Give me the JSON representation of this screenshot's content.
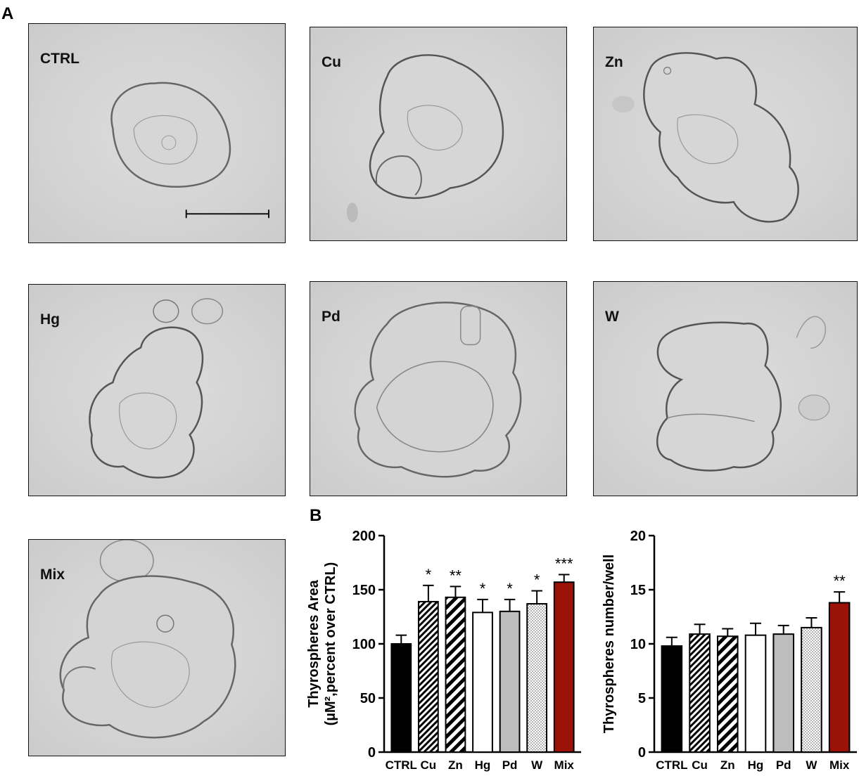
{
  "panels": {
    "a": "A",
    "b": "B"
  },
  "micrographs": [
    {
      "id": "ctrl",
      "label": "CTRL",
      "scale_bar": true
    },
    {
      "id": "cu",
      "label": "Cu"
    },
    {
      "id": "zn",
      "label": "Zn"
    },
    {
      "id": "hg",
      "label": "Hg"
    },
    {
      "id": "pd",
      "label": "Pd"
    },
    {
      "id": "w",
      "label": "W"
    },
    {
      "id": "mix",
      "label": "Mix"
    }
  ],
  "colors": {
    "black_bar": "#000000",
    "white_bar": "#ffffff",
    "grey_bar": "#bdbdbd",
    "mix_bar": "#9b1308"
  },
  "chart_data": [
    {
      "type": "bar",
      "ylabel_line1": "Thyrospheres Area",
      "ylabel_line2": "(µM²,percent over CTRL)",
      "ylim": [
        0,
        200
      ],
      "yticks": [
        "0",
        "50",
        "100",
        "150",
        "200"
      ],
      "categories": [
        "CTRL",
        "Cu",
        "Zn",
        "Hg",
        "Pd",
        "W",
        "Mix"
      ],
      "values": [
        100,
        139,
        143,
        129,
        130,
        137,
        157
      ],
      "errors": [
        8,
        15,
        10,
        12,
        11,
        12,
        7
      ],
      "significance": [
        "",
        "*",
        "**",
        "*",
        "*",
        "*",
        "***"
      ],
      "fills": [
        "black",
        "hatch-fine",
        "hatch-wide",
        "white",
        "grey",
        "dots",
        "mix"
      ]
    },
    {
      "type": "bar",
      "ylabel_line1": "Thyrospheres number/well",
      "ylim": [
        0,
        20
      ],
      "yticks": [
        "0",
        "5",
        "10",
        "15",
        "20"
      ],
      "categories": [
        "CTRL",
        "Cu",
        "Zn",
        "Hg",
        "Pd",
        "W",
        "Mix"
      ],
      "values": [
        9.8,
        10.9,
        10.7,
        10.8,
        10.9,
        11.5,
        13.8
      ],
      "errors": [
        0.8,
        0.9,
        0.7,
        1.1,
        0.8,
        0.9,
        1.0
      ],
      "significance": [
        "",
        "",
        "",
        "",
        "",
        "",
        "**"
      ],
      "fills": [
        "black",
        "hatch-fine",
        "hatch-wide",
        "white",
        "grey",
        "dots",
        "mix"
      ]
    }
  ]
}
